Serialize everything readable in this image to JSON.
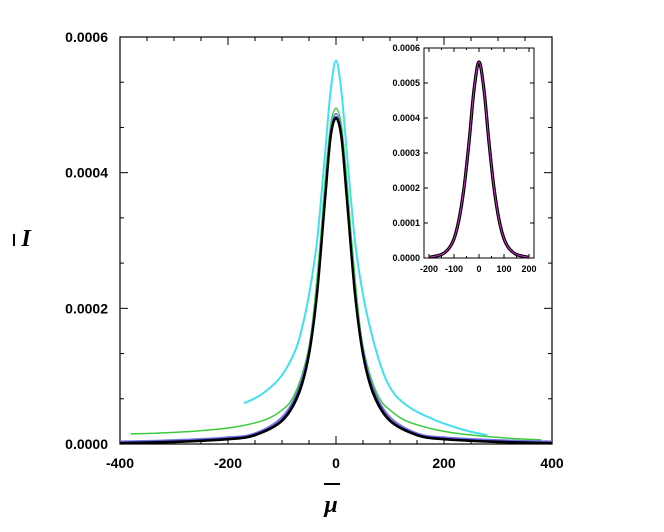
{
  "chart_data": [
    {
      "type": "line",
      "xlabel": "μ",
      "ylabel": "I",
      "xlim": [
        -400,
        400
      ],
      "ylim": [
        0,
        0.0006
      ],
      "xticks": [
        "-400",
        "-200",
        "0",
        "200",
        "400"
      ],
      "yticks": [
        "0.0000",
        "0.0002",
        "0.0004",
        "0.0006"
      ],
      "grid": false,
      "series": [
        {
          "color": "#40e0f0",
          "x": [
            -170,
            -140,
            -110,
            -90,
            -70,
            -50,
            -35,
            -20,
            -10,
            0,
            10,
            20,
            35,
            50,
            70,
            90,
            110,
            140,
            170,
            200,
            240,
            280
          ],
          "y": [
            6e-05,
            7.2e-05,
            9.2e-05,
            0.000114,
            0.00015,
            0.00022,
            0.0003,
            0.00043,
            0.00052,
            0.000565,
            0.00052,
            0.00043,
            0.0003,
            0.00022,
            0.00015,
            0.0001,
            7.2e-05,
            5.2e-05,
            4e-05,
            3e-05,
            2e-05,
            1.3e-05
          ]
        },
        {
          "color": "#3ccc3c",
          "x": [
            -380,
            -330,
            -280,
            -230,
            -180,
            -130,
            -100,
            -80,
            -60,
            -45,
            -30,
            -20,
            -10,
            0,
            10,
            20,
            30,
            45,
            60,
            80,
            100,
            130,
            180,
            230,
            280,
            330,
            380
          ],
          "y": [
            1.5e-05,
            1.6e-05,
            1.8e-05,
            2.1e-05,
            2.6e-05,
            3.6e-05,
            5e-05,
            6.8e-05,
            0.00011,
            0.00017,
            0.00029,
            0.00039,
            0.00047,
            0.000495,
            0.00047,
            0.00039,
            0.00029,
            0.00017,
            0.00011,
            6.8e-05,
            5e-05,
            3.4e-05,
            2.2e-05,
            1.5e-05,
            1.1e-05,
            8e-06,
            6e-06
          ]
        },
        {
          "color": "#7070e0",
          "x": [
            -400,
            -300,
            -200,
            -150,
            -100,
            -70,
            -50,
            -35,
            -20,
            -10,
            0,
            10,
            20,
            35,
            50,
            70,
            100,
            150,
            200,
            300,
            400
          ],
          "y": [
            4e-06,
            6e-06,
            1e-05,
            1.6e-05,
            4e-05,
            8e-05,
            0.00014,
            0.00023,
            0.00037,
            0.00046,
            0.000487,
            0.00046,
            0.00037,
            0.00023,
            0.00014,
            8e-05,
            4e-05,
            1.6e-05,
            1e-05,
            6e-06,
            4e-06
          ]
        },
        {
          "color": "#101070",
          "x": [
            -400,
            -300,
            -200,
            -150,
            -100,
            -70,
            -50,
            -35,
            -20,
            -10,
            0,
            10,
            20,
            35,
            50,
            70,
            100,
            150,
            200,
            300,
            400
          ],
          "y": [
            2e-06,
            4e-06,
            8e-06,
            1.4e-05,
            3.6e-05,
            7.5e-05,
            0.000135,
            0.000225,
            0.000365,
            0.000455,
            0.000482,
            0.000455,
            0.000365,
            0.000225,
            0.000135,
            7.5e-05,
            3.6e-05,
            1.4e-05,
            8e-06,
            4e-06,
            2e-06
          ]
        },
        {
          "color": "#000000",
          "x": [
            -400,
            -300,
            -200,
            -150,
            -100,
            -70,
            -50,
            -35,
            -20,
            -10,
            0,
            10,
            20,
            35,
            50,
            70,
            100,
            150,
            200,
            300,
            400
          ],
          "y": [
            1e-06,
            3e-06,
            7e-06,
            1.3e-05,
            3.4e-05,
            7.2e-05,
            0.000132,
            0.000222,
            0.000362,
            0.000452,
            0.00048,
            0.000452,
            0.000362,
            0.000222,
            0.000132,
            7.2e-05,
            3.4e-05,
            1.3e-05,
            7e-06,
            3e-06,
            1e-06
          ]
        }
      ]
    },
    {
      "type": "line",
      "xlim": [
        -220,
        220
      ],
      "ylim": [
        0,
        0.0006
      ],
      "xticks": [
        "-200",
        "-100",
        "0",
        "100",
        "200"
      ],
      "yticks": [
        "0.0000",
        "0.0001",
        "0.0002",
        "0.0003",
        "0.0004",
        "0.0005",
        "0.0006"
      ],
      "grid": false,
      "series": [
        {
          "color": "#000000",
          "x": [
            -200,
            -150,
            -120,
            -100,
            -80,
            -60,
            -40,
            -20,
            0,
            20,
            40,
            60,
            80,
            100,
            120,
            150,
            200
          ],
          "y": [
            2e-06,
            1e-05,
            2.8e-05,
            5.5e-05,
            0.00011,
            0.0002,
            0.00033,
            0.00048,
            0.00056,
            0.00048,
            0.00033,
            0.0002,
            0.00011,
            5.5e-05,
            2.8e-05,
            1e-05,
            2e-06
          ]
        },
        {
          "color": "#c030c0",
          "x": [
            -200,
            -150,
            -120,
            -100,
            -80,
            -60,
            -40,
            -20,
            0,
            20,
            40,
            60,
            80,
            100,
            120,
            150,
            200
          ],
          "y": [
            2e-06,
            1e-05,
            2.8e-05,
            5.5e-05,
            0.00011,
            0.0002,
            0.00033,
            0.00048,
            0.00056,
            0.00048,
            0.00033,
            0.0002,
            0.00011,
            5.5e-05,
            2.8e-05,
            1e-05,
            2e-06
          ]
        }
      ]
    }
  ]
}
